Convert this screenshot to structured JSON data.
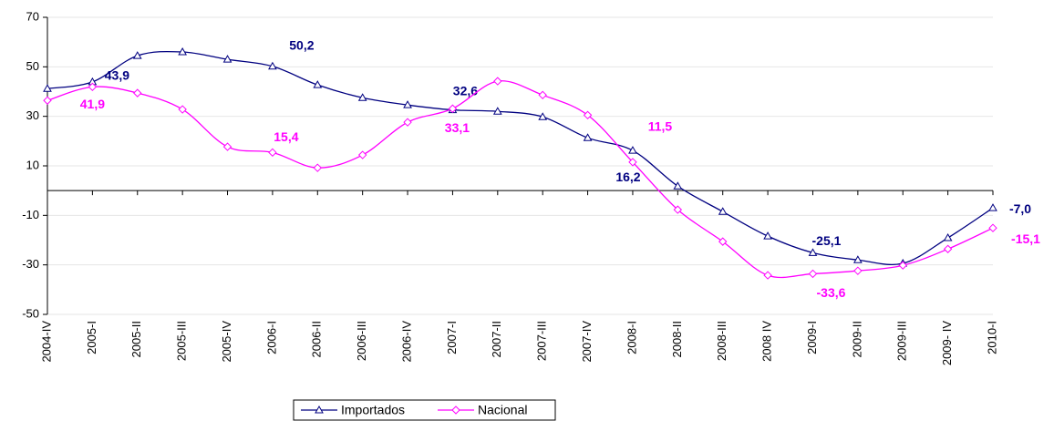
{
  "chart_data": {
    "type": "line",
    "categories": [
      "2004-IV",
      "2005-I",
      "2005-II",
      "2005-III",
      "2005-IV",
      "2006-I",
      "2006-II",
      "2006-III",
      "2006-IV",
      "2007-I",
      "2007-II",
      "2007-III",
      "2007-IV",
      "2008-I",
      "2008-II",
      "2008-III",
      "2008 IV",
      "2009-I",
      "2009-II",
      "2009-III",
      "2009- IV",
      "2010-I"
    ],
    "series": [
      {
        "name": "Importados",
        "color": "#000080",
        "values": [
          41.2,
          43.9,
          54.5,
          56,
          53,
          50.2,
          42.7,
          37.5,
          34.6,
          32.6,
          32,
          29.8,
          21.3,
          16.2,
          1.8,
          -8.5,
          -18.4,
          -25.1,
          -28,
          -29.4,
          -19.1,
          -7.0
        ],
        "value_labels": [
          null,
          "43,9",
          null,
          null,
          null,
          "50,2",
          null,
          null,
          null,
          "32,6",
          null,
          null,
          null,
          "16,2",
          null,
          null,
          null,
          "-25,1",
          null,
          null,
          null,
          "-7,0"
        ]
      },
      {
        "name": "Nacional",
        "color": "#ff00ff",
        "values": [
          36.4,
          41.9,
          39.4,
          32.8,
          17.7,
          15.4,
          9.2,
          14.4,
          27.6,
          33.1,
          44.2,
          38.6,
          30.5,
          11.5,
          -7.7,
          -20.6,
          -34.2,
          -33.6,
          -32.4,
          -30.2,
          -23.6,
          -15.1
        ],
        "value_labels": [
          null,
          "41,9",
          null,
          null,
          null,
          "15,4",
          null,
          null,
          null,
          "33,1",
          null,
          null,
          null,
          "11,5",
          null,
          null,
          null,
          "-33,6",
          null,
          null,
          null,
          "-15,1"
        ]
      }
    ],
    "ylim": [
      -50,
      70
    ],
    "yticks": [
      70,
      50,
      30,
      10,
      -10,
      -30,
      -50
    ],
    "grid": true,
    "legend": "bottom"
  }
}
